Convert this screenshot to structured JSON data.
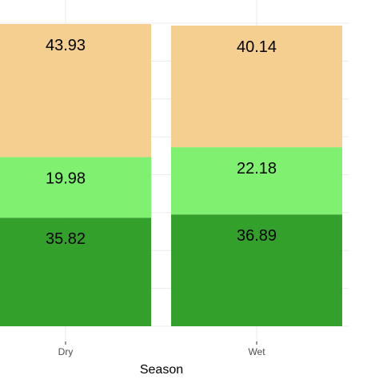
{
  "chart_data": {
    "type": "bar",
    "stacked": true,
    "categories": [
      "Dry",
      "Wet"
    ],
    "xlabel": "Season",
    "ylabel": "",
    "ylim": [
      0,
      100
    ],
    "grid": true,
    "series": [
      {
        "values": [
          35.82,
          36.89
        ],
        "labels": [
          "35.82",
          "36.89"
        ],
        "color": "#33a02c"
      },
      {
        "values": [
          19.98,
          22.18
        ],
        "labels": [
          "19.98",
          "22.18"
        ],
        "color": "#80f070"
      },
      {
        "values": [
          43.93,
          40.14
        ],
        "labels": [
          "43.93",
          "40.14"
        ],
        "color": "#f5cf90"
      }
    ]
  }
}
